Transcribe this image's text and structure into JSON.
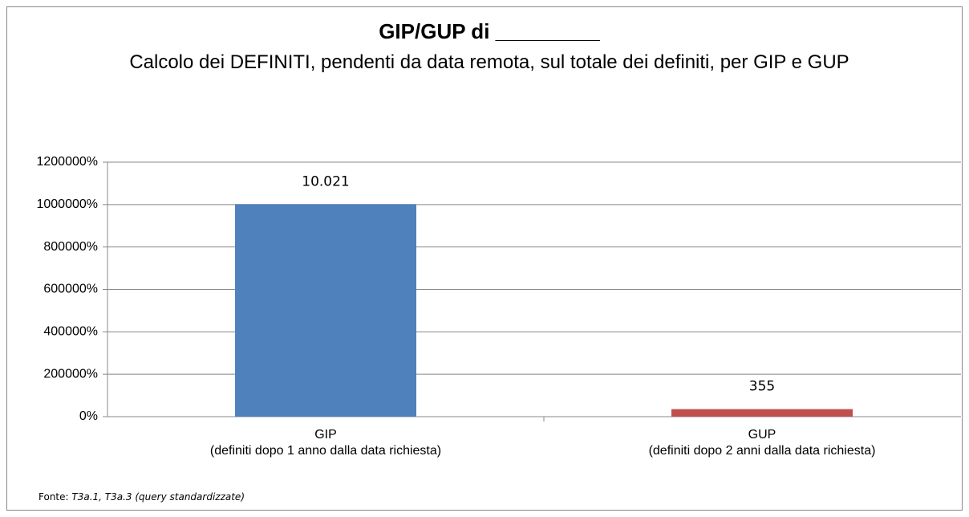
{
  "chart_data": {
    "type": "bar",
    "title": "GIP/GUP di _________",
    "subtitle": "Calcolo dei DEFINITI, pendenti da data remota, sul totale dei definiti, per GIP e GUP",
    "categories": [
      "GIP\n(definiti dopo 1 anno dalla data richiesta)",
      "GUP\n(definiti dopo 2 anni dalla data richiesta)"
    ],
    "values": [
      1002100,
      35500
    ],
    "value_labels": [
      "10.021",
      "355"
    ],
    "colors": [
      "#4f81bd",
      "#c0504d"
    ],
    "ylim": [
      0,
      1200000
    ],
    "yticks": [
      {
        "value": 0,
        "label": "0%"
      },
      {
        "value": 200000,
        "label": "200000%"
      },
      {
        "value": 400000,
        "label": "400000%"
      },
      {
        "value": 600000,
        "label": "600000%"
      },
      {
        "value": 800000,
        "label": "800000%"
      },
      {
        "value": 1000000,
        "label": "1000000%"
      },
      {
        "value": 1200000,
        "label": "1200000%"
      }
    ],
    "grid": true,
    "source_label": "Fonte:",
    "source": "T3a.1, T3a.3 (query standardizzate)"
  }
}
